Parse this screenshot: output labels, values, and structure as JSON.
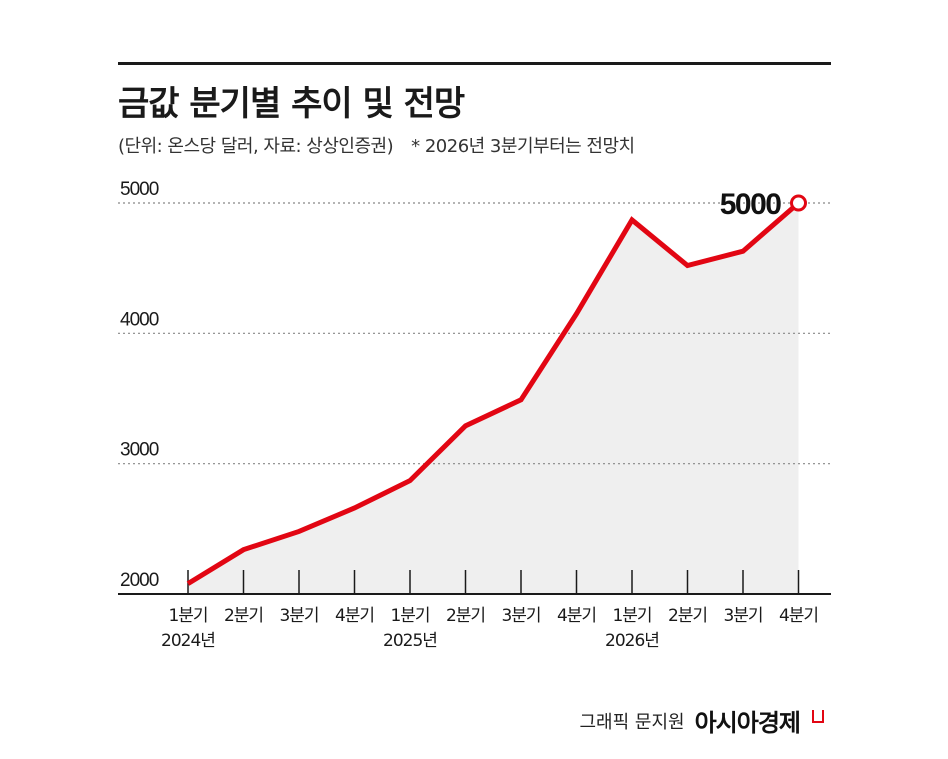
{
  "header": {
    "title": "금값 분기별 추이 및 전망",
    "subtitle": "(단위: 온스당 달러, 자료: 상상인증권)",
    "note": "* 2026년 3분기부터는 전망치"
  },
  "footer": {
    "credit": "그래픽 문지원",
    "brand": "아시아경제"
  },
  "colors": {
    "line": "#e20613",
    "area": "#efefef",
    "axis": "#1a1a1a",
    "grid": "#888888"
  },
  "chart_data": {
    "type": "area",
    "categories": [
      "1분기",
      "2분기",
      "3분기",
      "4분기",
      "1분기",
      "2분기",
      "3분기",
      "4분기",
      "1분기",
      "2분기",
      "3분기",
      "4분기"
    ],
    "year_labels": [
      {
        "index": 0,
        "label": "2024년"
      },
      {
        "index": 4,
        "label": "2025년"
      },
      {
        "index": 8,
        "label": "2026년"
      }
    ],
    "series": [
      {
        "values": [
          2080,
          2340,
          2480,
          2660,
          2870,
          3290,
          3490,
          4150,
          4870,
          4520,
          4630,
          5000
        ]
      }
    ],
    "yticks": [
      2000,
      3000,
      4000,
      5000
    ],
    "ylim": [
      2000,
      5000
    ],
    "grid": true,
    "annotation": {
      "index": 11,
      "text": "5000"
    }
  }
}
